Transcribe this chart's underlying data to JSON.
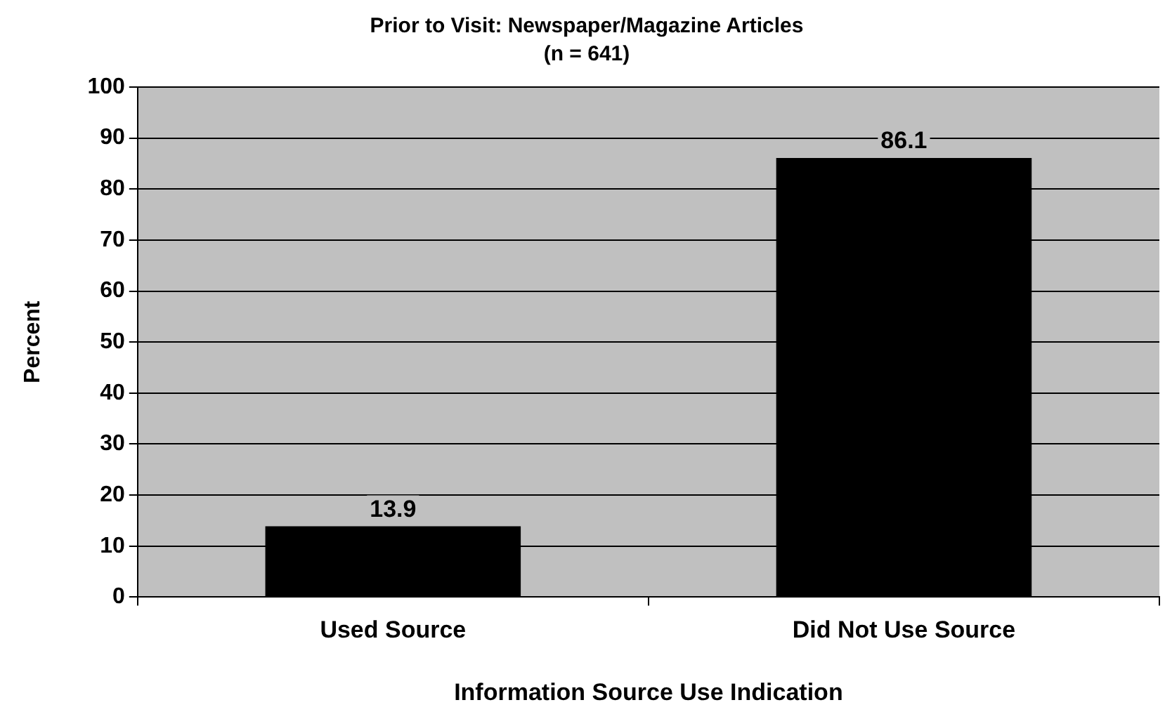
{
  "chart_data": {
    "type": "bar",
    "title": "Prior to Visit: Newspaper/Magazine Articles",
    "subtitle": "(n = 641)",
    "xlabel": "Information Source Use Indication",
    "ylabel": "Percent",
    "categories": [
      "Used Source",
      "Did Not Use Source"
    ],
    "values": [
      13.9,
      86.1
    ],
    "color": "#000000",
    "ylim": [
      0,
      100
    ],
    "yticks": [
      0,
      10,
      20,
      30,
      40,
      50,
      60,
      70,
      80,
      90,
      100
    ],
    "grid": "y",
    "legend": false,
    "data_labels": true
  }
}
